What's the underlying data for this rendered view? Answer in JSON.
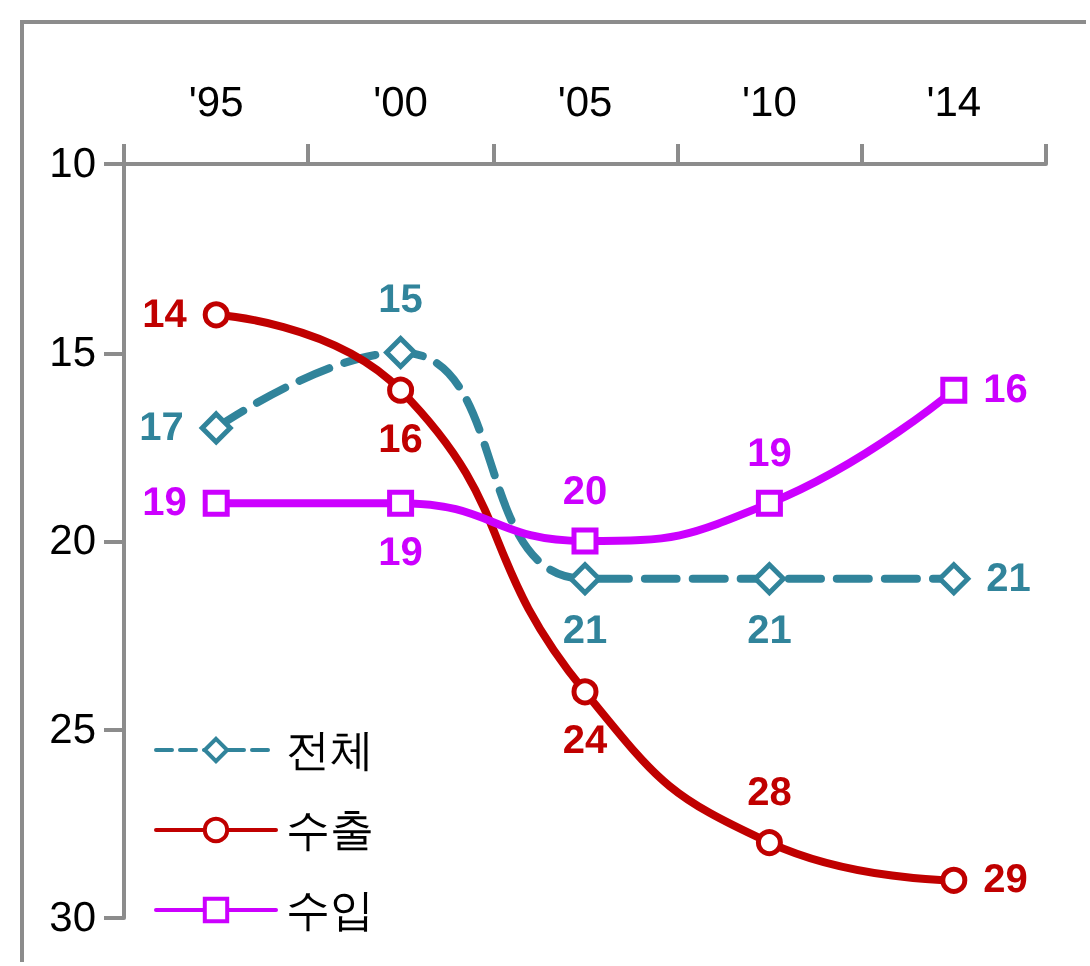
{
  "chart_data": {
    "type": "line",
    "categories": [
      "'95",
      "'00",
      "'05",
      "'10",
      "'14"
    ],
    "series": [
      {
        "name": "전체",
        "color": "#31849b",
        "values": [
          17,
          15,
          21,
          21,
          21
        ],
        "marker": "diamond",
        "line_style": "dashed"
      },
      {
        "name": "수출",
        "color": "#c00000",
        "values": [
          14,
          16,
          24,
          28,
          29
        ],
        "marker": "circle",
        "line_style": "solid"
      },
      {
        "name": "수입",
        "color": "#cc00ff",
        "values": [
          19,
          19,
          20,
          19,
          16
        ],
        "marker": "square",
        "line_style": "solid"
      }
    ],
    "ylim": [
      30,
      10
    ],
    "yticks": [
      10,
      15,
      20,
      25,
      30
    ],
    "grid": false,
    "legend": "bottom left",
    "data_labels": true
  }
}
